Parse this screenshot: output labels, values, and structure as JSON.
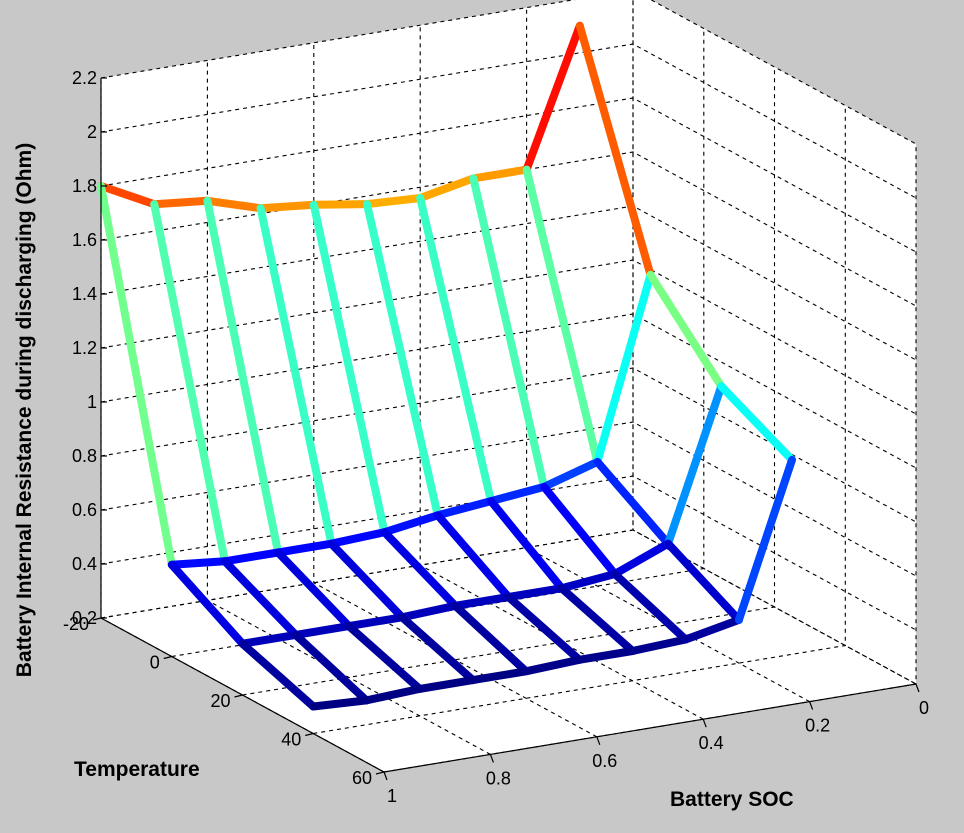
{
  "chart_data": {
    "type": "mesh",
    "xlabel": "Battery SOC",
    "ylabel": "Temperature",
    "zlabel": "Battery Internal Resistance during discharging (Ohm)",
    "x_ticks": [
      "1",
      "0.8",
      "0.6",
      "0.4",
      "0.2",
      "0"
    ],
    "y_ticks": [
      "-20",
      "0",
      "20",
      "40",
      "60"
    ],
    "z_ticks": [
      "0.2",
      "0.4",
      "0.6",
      "0.8",
      "1",
      "1.2",
      "1.4",
      "1.6",
      "1.8",
      "2",
      "2.2"
    ],
    "xlim": [
      0,
      1
    ],
    "ylim": [
      -20,
      60
    ],
    "zlim": [
      0.2,
      2.2
    ],
    "grid": true,
    "colormap": "jet",
    "soc": [
      1.0,
      0.9,
      0.8,
      0.7,
      0.6,
      0.5,
      0.4,
      0.3,
      0.2,
      0.1
    ],
    "temperature": [
      -20,
      0,
      20,
      40
    ],
    "resistance": [
      [
        1.8,
        1.7,
        1.68,
        1.62,
        1.6,
        1.57,
        1.56,
        1.6,
        1.6,
        2.1
      ],
      [
        0.54,
        0.52,
        0.52,
        0.52,
        0.53,
        0.56,
        0.58,
        0.6,
        0.66,
        1.32
      ],
      [
        0.39,
        0.39,
        0.39,
        0.39,
        0.4,
        0.4,
        0.4,
        0.42,
        0.5,
        1.05
      ],
      [
        0.3,
        0.29,
        0.3,
        0.3,
        0.3,
        0.31,
        0.31,
        0.32,
        0.36,
        0.92
      ]
    ]
  }
}
